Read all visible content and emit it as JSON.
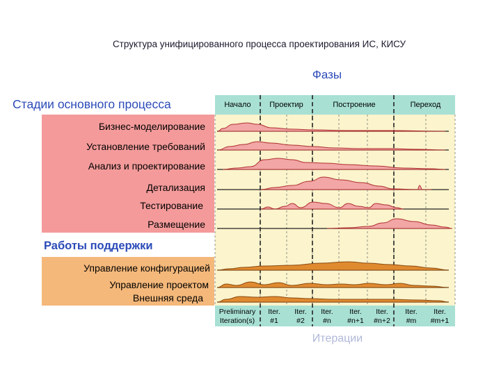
{
  "title": "Структура унифицированного процесса проектирования ИС, КИСУ",
  "phases_label": "Фазы",
  "stages_label": "Стадии основного процесса",
  "support_label": "Работы поддержки",
  "iterations_label": "Итерации",
  "phases": [
    "Начало",
    "Проектир",
    "Построение",
    "Переход"
  ],
  "core_disciplines": [
    "Бизнес-моделирование",
    "Установление требований",
    "Анализ и проектирование",
    "Детализация",
    "Тестирование",
    "Размещение"
  ],
  "support_disciplines": [
    "Управление конфигурацией",
    "Управление проектом",
    "Внешняя среда"
  ],
  "iterations": [
    {
      "l1": "Preliminary",
      "l2": "Iteration(s)"
    },
    {
      "l1": "Iter.",
      "l2": "#1"
    },
    {
      "l1": "Iter.",
      "l2": "#2"
    },
    {
      "l1": "Iter.",
      "l2": "#n"
    },
    {
      "l1": "Iter.",
      "l2": "#n+1"
    },
    {
      "l1": "Iter.",
      "l2": "#n+2"
    },
    {
      "l1": "Iter.",
      "l2": "#m"
    },
    {
      "l1": "Iter.",
      "l2": "#m+1"
    }
  ],
  "colors": {
    "core_fill": "#f2a6a6",
    "core_stroke": "#b03030",
    "support_fill": "#e08a30",
    "support_stroke": "#8a4a10",
    "header": "#a8e0d4"
  }
}
